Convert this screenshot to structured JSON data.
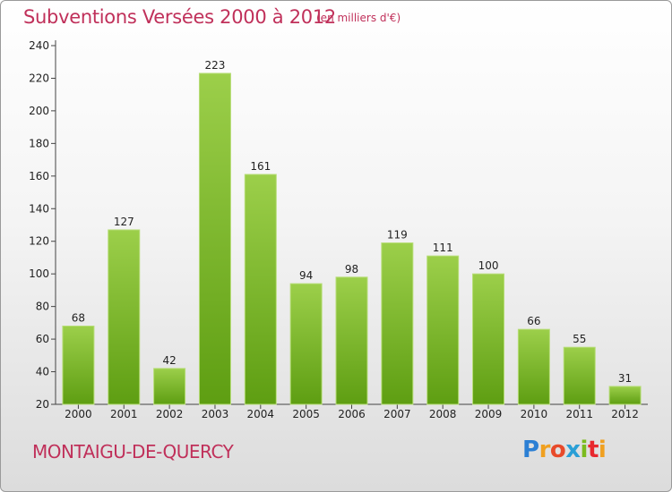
{
  "header": {
    "title": "Subventions Versées 2000 à 2012",
    "unit": "(en milliers d'€)"
  },
  "footer": {
    "commune": "MONTAIGU-DE-QUERCY",
    "logo": "Proxiti"
  },
  "colors": {
    "title": "#c0305a",
    "bar_light": "#9ccf4a",
    "bar_dark": "#5e9e12"
  },
  "chart_data": {
    "type": "bar",
    "title": "Subventions Versées 2000 à 2012",
    "subtitle": "(en milliers d'€)",
    "categories": [
      "2000",
      "2001",
      "2002",
      "2003",
      "2004",
      "2005",
      "2006",
      "2007",
      "2008",
      "2009",
      "2010",
      "2011",
      "2012"
    ],
    "values": [
      68,
      127,
      42,
      223,
      161,
      94,
      98,
      119,
      111,
      100,
      66,
      55,
      31
    ],
    "ylim": [
      20,
      240
    ],
    "yticks": [
      20,
      40,
      60,
      80,
      100,
      120,
      140,
      160,
      180,
      200,
      220,
      240
    ],
    "grid": false
  }
}
